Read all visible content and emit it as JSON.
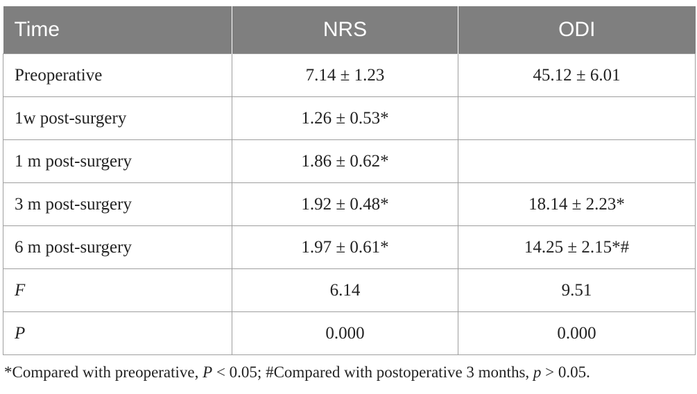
{
  "table": {
    "headers": [
      "Time",
      "NRS",
      "ODI"
    ],
    "rows": [
      {
        "time": "Preoperative",
        "nrs": "7.14 ± 1.23",
        "odi": "45.12 ± 6.01"
      },
      {
        "time": "1w post-surgery",
        "nrs": "1.26 ± 0.53*",
        "odi": ""
      },
      {
        "time": "1 m post-surgery",
        "nrs": "1.86 ± 0.62*",
        "odi": ""
      },
      {
        "time": "3 m post-surgery",
        "nrs": "1.92 ± 0.48*",
        "odi": "18.14 ± 2.23*"
      },
      {
        "time": "6 m post-surgery",
        "nrs": "1.97 ± 0.61*",
        "odi": "14.25 ± 2.15*#"
      },
      {
        "time": "F",
        "nrs": "6.14",
        "odi": "9.51"
      },
      {
        "time": "P",
        "nrs": "0.000",
        "odi": "0.000"
      }
    ]
  },
  "footnote": {
    "part1": "*Compared with preoperative, ",
    "p_upper": "P",
    "part2": " < 0.05; #Compared with postoperative 3 months, ",
    "p_lower": "p",
    "part3": " > 0.05."
  }
}
